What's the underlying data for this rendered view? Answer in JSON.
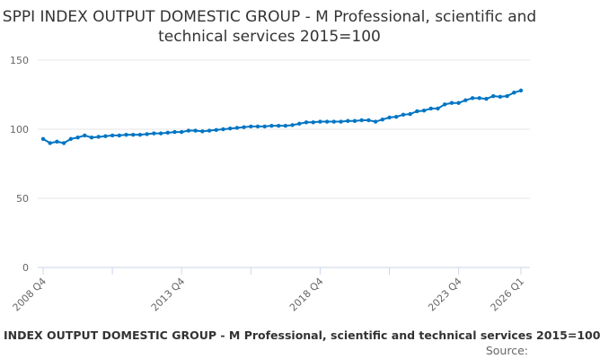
{
  "chart_data": {
    "type": "line",
    "title": "SPPI INDEX OUTPUT DOMESTIC GROUP - M Professional, scientific and technical services 2015=100",
    "caption": "INDEX OUTPUT DOMESTIC GROUP - M Professional, scientific and technical services 2015=100",
    "source": "Source:",
    "xlabel": "",
    "ylabel": "",
    "ylim": [
      0,
      150
    ],
    "yticks": [
      0,
      50,
      100,
      150
    ],
    "x_start": "2008 Q4",
    "x_end": "2026 Q1",
    "xtick_labels": [
      {
        "index": 0,
        "label": "2008 Q4"
      },
      {
        "index": 20,
        "label": "2013 Q4"
      },
      {
        "index": 40,
        "label": "2018 Q4"
      },
      {
        "index": 60,
        "label": "2023 Q4"
      },
      {
        "index": 69,
        "label": "2026 Q1"
      }
    ],
    "grid": true,
    "series": [
      {
        "name": "INDEX OUTPUT DOMESTIC GROUP - M Professional, scientific and technical services 2015=100",
        "color": "#0075c4",
        "values": [
          93,
          90,
          91,
          90,
          93,
          94,
          95.5,
          94,
          94.5,
          95,
          95.5,
          95.5,
          96,
          96,
          96,
          96.5,
          97,
          97,
          97.5,
          98,
          98,
          99,
          99,
          98.5,
          99,
          99.5,
          100,
          100.5,
          101,
          101.5,
          102,
          102,
          102,
          102.5,
          102.5,
          102.5,
          103,
          104,
          105,
          105,
          105.5,
          105.5,
          105.5,
          105.5,
          106,
          106,
          106.5,
          106.5,
          105.5,
          107,
          108.5,
          109,
          110.5,
          111,
          113,
          113.5,
          115,
          115,
          118,
          119,
          119,
          121,
          122.5,
          122.5,
          122,
          124,
          123.5,
          124,
          126.5,
          128
        ]
      }
    ]
  }
}
